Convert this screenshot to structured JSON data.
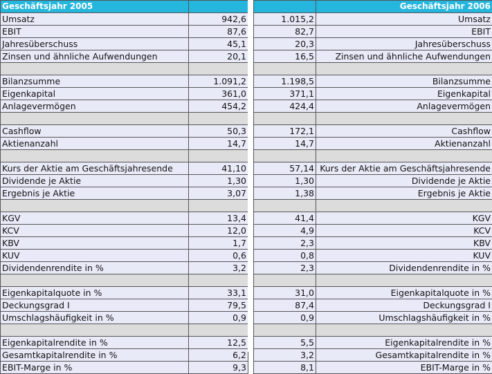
{
  "left": {
    "header": "Geschäftsjahr 2005",
    "groups": [
      [
        [
          "Umsatz",
          "942,6"
        ],
        [
          "EBIT",
          "87,6"
        ],
        [
          "Jahresüberschuss",
          "45,1"
        ],
        [
          "Zinsen und ähnliche Aufwendungen",
          "20,1"
        ]
      ],
      [
        [
          "Bilanzsumme",
          "1.091,2"
        ],
        [
          "Eigenkapital",
          "361,0"
        ],
        [
          "Anlagevermögen",
          "454,2"
        ]
      ],
      [
        [
          "Cashflow",
          "50,3"
        ],
        [
          "Aktienanzahl",
          "14,7"
        ]
      ],
      [
        [
          "Kurs der Aktie am Geschäftsjahresende",
          "41,10"
        ],
        [
          "Dividende je Aktie",
          "1,30"
        ],
        [
          "Ergebnis je Aktie",
          "3,07"
        ]
      ],
      [
        [
          "KGV",
          "13,4"
        ],
        [
          "KCV",
          "12,0"
        ],
        [
          "KBV",
          "1,7"
        ],
        [
          "KUV",
          "0,6"
        ],
        [
          "Dividendenrendite in %",
          "3,2"
        ]
      ],
      [
        [
          "Eigenkapitalquote in %",
          "33,1"
        ],
        [
          "Deckungsgrad I",
          "79,5"
        ],
        [
          "Umschlagshäufigkeit in %",
          "0,9"
        ]
      ],
      [
        [
          "Eigenkapitalrendite in %",
          "12,5"
        ],
        [
          "Gesamtkapitalrendite in %",
          "6,2"
        ],
        [
          "EBIT-Marge in %",
          "9,3"
        ]
      ]
    ]
  },
  "right": {
    "header": "Geschäftsjahr 2006",
    "groups": [
      [
        [
          "Umsatz",
          "1.015,2"
        ],
        [
          "EBIT",
          "82,7"
        ],
        [
          "Jahresüberschuss",
          "20,3"
        ],
        [
          "Zinsen und ähnliche Aufwendungen",
          "16,5"
        ]
      ],
      [
        [
          "Bilanzsumme",
          "1.198,5"
        ],
        [
          "Eigenkapital",
          "371,1"
        ],
        [
          "Anlagevermögen",
          "424,4"
        ]
      ],
      [
        [
          "Cashflow",
          "172,1"
        ],
        [
          "Aktienanzahl",
          "14,7"
        ]
      ],
      [
        [
          "Kurs der Aktie am Geschäftsjahresende",
          "57,14"
        ],
        [
          "Dividende je Aktie",
          "1,30"
        ],
        [
          "Ergebnis je Aktie",
          "1,38"
        ]
      ],
      [
        [
          "KGV",
          "41,4"
        ],
        [
          "KCV",
          "4,9"
        ],
        [
          "KBV",
          "2,3"
        ],
        [
          "KUV",
          "0,8"
        ],
        [
          "Dividendenrendite in %",
          "2,3"
        ]
      ],
      [
        [
          "Eigenkapitalquote in %",
          "31,0"
        ],
        [
          "Deckungsgrad I",
          "87,4"
        ],
        [
          "Umschlagshäufigkeit in %",
          "0,9"
        ]
      ],
      [
        [
          "Eigenkapitalrendite in %",
          "5,5"
        ],
        [
          "Gesamtkapitalrendite in %",
          "3,2"
        ],
        [
          "EBIT-Marge in %",
          "8,1"
        ]
      ]
    ]
  }
}
